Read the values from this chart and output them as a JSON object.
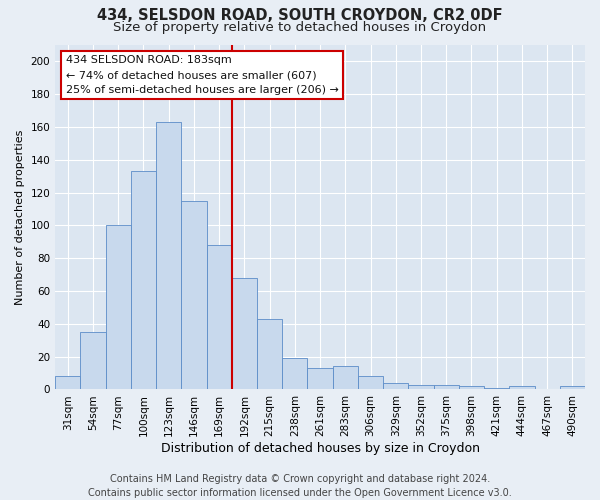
{
  "title1": "434, SELSDON ROAD, SOUTH CROYDON, CR2 0DF",
  "title2": "Size of property relative to detached houses in Croydon",
  "xlabel": "Distribution of detached houses by size in Croydon",
  "ylabel": "Number of detached properties",
  "footer1": "Contains HM Land Registry data © Crown copyright and database right 2024.",
  "footer2": "Contains public sector information licensed under the Open Government Licence v3.0.",
  "annotation_line1": "434 SELSDON ROAD: 183sqm",
  "annotation_line2": "← 74% of detached houses are smaller (607)",
  "annotation_line3": "25% of semi-detached houses are larger (206) →",
  "bar_labels": [
    "31sqm",
    "54sqm",
    "77sqm",
    "100sqm",
    "123sqm",
    "146sqm",
    "169sqm",
    "192sqm",
    "215sqm",
    "238sqm",
    "261sqm",
    "283sqm",
    "306sqm",
    "329sqm",
    "352sqm",
    "375sqm",
    "398sqm",
    "421sqm",
    "444sqm",
    "467sqm",
    "490sqm"
  ],
  "bar_values": [
    8,
    35,
    100,
    133,
    163,
    115,
    88,
    68,
    43,
    19,
    13,
    14,
    8,
    4,
    3,
    3,
    2,
    1,
    2,
    0,
    2
  ],
  "bar_color": "#c8d9ed",
  "bar_edge_color": "#5b8cc8",
  "vline_color": "#cc0000",
  "vline_x": 6.5,
  "annotation_box_color": "#cc0000",
  "background_color": "#e8eef5",
  "plot_bg_color": "#dce6f1",
  "ylim": [
    0,
    210
  ],
  "yticks": [
    0,
    20,
    40,
    60,
    80,
    100,
    120,
    140,
    160,
    180,
    200
  ],
  "grid_color": "#ffffff",
  "title1_fontsize": 10.5,
  "title2_fontsize": 9.5,
  "xlabel_fontsize": 9,
  "ylabel_fontsize": 8,
  "tick_fontsize": 7.5,
  "footer_fontsize": 7,
  "annotation_fontsize": 8
}
